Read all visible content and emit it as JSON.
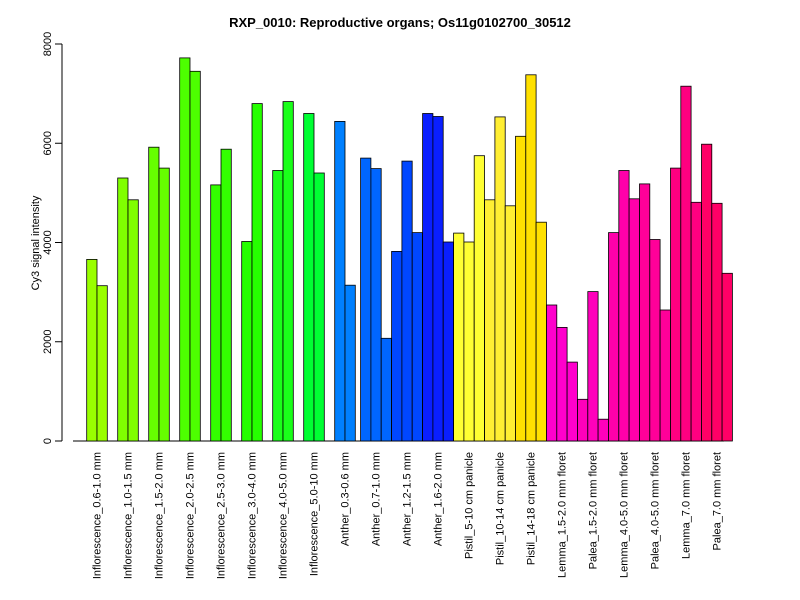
{
  "chart_data": {
    "type": "bar",
    "title": "RXP_0010: Reproductive organs; Os11g0102700_30512",
    "xlabel": "",
    "ylabel": "Cy3 signal intensity",
    "ylim": [
      0,
      8000
    ],
    "yticks": [
      0,
      2000,
      4000,
      6000,
      8000
    ],
    "grid": false,
    "groups": [
      {
        "label": "Inflorescence_0.6-1.0 mm",
        "color": "#99FF00",
        "values": [
          3660,
          3130
        ]
      },
      {
        "label": "Inflorescence_1.0-1.5 mm",
        "color": "#80FF00",
        "values": [
          5300,
          4860
        ]
      },
      {
        "label": "Inflorescence_1.5-2.0 mm",
        "color": "#66FF00",
        "values": [
          5920,
          5500
        ]
      },
      {
        "label": "Inflorescence_2.0-2.5 mm",
        "color": "#4DFF00",
        "values": [
          7720,
          7450
        ]
      },
      {
        "label": "Inflorescence_2.5-3.0 mm",
        "color": "#33FF00",
        "values": [
          5160,
          5880
        ]
      },
      {
        "label": "Inflorescence_3.0-4.0 mm",
        "color": "#26FF00",
        "values": [
          4020,
          6800
        ]
      },
      {
        "label": "Inflorescence_4.0-5.0 mm",
        "color": "#1AFF1A",
        "values": [
          5450,
          6840
        ]
      },
      {
        "label": "Inflorescence_5.0-10 mm",
        "color": "#00FF33",
        "values": [
          6600,
          5400
        ]
      },
      {
        "label": "Anther_0.3-0.6 mm",
        "color": "#0080FF",
        "values": [
          6440,
          3140
        ]
      },
      {
        "label": "Anther_0.7-1.0 mm",
        "color": "#0066FF",
        "values": [
          5700,
          5490,
          2070
        ]
      },
      {
        "label": "Anther_1.2-1.5 mm",
        "color": "#0047FF",
        "values": [
          3820,
          5640,
          4200
        ]
      },
      {
        "label": "Anther_1.6-2.0 mm",
        "color": "#0A1FFF",
        "values": [
          6600,
          6540,
          4010
        ]
      },
      {
        "label": "Pistil_5-10 cm panicle",
        "color": "#FFFF33",
        "values": [
          4190,
          4010,
          5750
        ]
      },
      {
        "label": "Pistil_10-14 cm panicle",
        "color": "#FFEE33",
        "values": [
          4860,
          6530,
          4740
        ]
      },
      {
        "label": "Pistil_14-18 cm panicle",
        "color": "#FFE000",
        "values": [
          6140,
          7380,
          4410
        ]
      },
      {
        "label": "Lemma_1.5-2.0 mm floret",
        "color": "#FF00CC",
        "values": [
          2740,
          2290,
          1590
        ]
      },
      {
        "label": "Palea_1.5-2.0 mm floret",
        "color": "#FF00BB",
        "values": [
          840,
          3010,
          440
        ]
      },
      {
        "label": "Lemma_4.0-5.0 mm floret",
        "color": "#FF00AA",
        "values": [
          4200,
          5450,
          4880
        ]
      },
      {
        "label": "Palea_4.0-5.0 mm floret",
        "color": "#FF0099",
        "values": [
          5180,
          4060,
          2640
        ]
      },
      {
        "label": "Lemma_7.0 mm floret",
        "color": "#FF0080",
        "values": [
          5500,
          7150,
          4810
        ]
      },
      {
        "label": "Palea_7.0 mm floret",
        "color": "#FF0066",
        "values": [
          5980,
          4790,
          3380
        ]
      }
    ]
  }
}
